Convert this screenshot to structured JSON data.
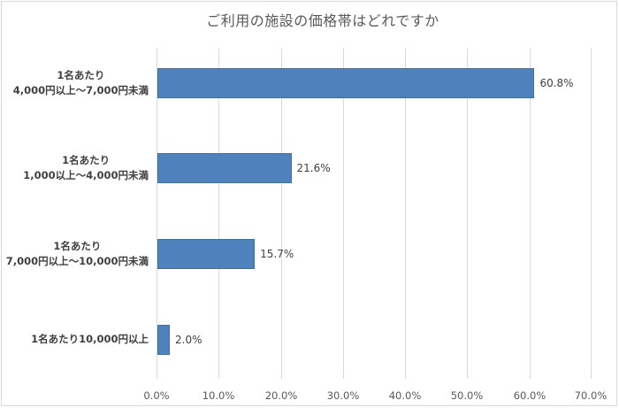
{
  "chart_data": {
    "type": "bar",
    "orientation": "horizontal",
    "title": "ご利用の施設の価格帯はどれですか",
    "xlabel": "",
    "ylabel": "",
    "xlim": [
      0,
      70
    ],
    "grid": true,
    "legend": null,
    "categories": [
      "1名あたり 4,000円以上～7,000円未満",
      "1名あたり 1,000以上～4,000円未満",
      "1名あたり 7,000円以上～10,000円未満",
      "1名あたり10,000円以上"
    ],
    "values": [
      60.8,
      21.6,
      15.7,
      2.0
    ],
    "data_labels": [
      "60.8%",
      "21.6%",
      "15.7%",
      "2.0%"
    ],
    "x_ticks": [
      "0.0%",
      "10.0%",
      "20.0%",
      "30.0%",
      "40.0%",
      "50.0%",
      "60.0%",
      "70.0%"
    ],
    "bar_color": "#4f81bd"
  },
  "title": "ご利用の施設の価格帯はどれですか",
  "categories": [
    {
      "line1": "1名あたり",
      "line2": "4,000円以上～7,000円未満",
      "value": 60.8,
      "label": "60.8%"
    },
    {
      "line1": "1名あたり",
      "line2": "1,000以上～4,000円未満",
      "value": 21.6,
      "label": "21.6%"
    },
    {
      "line1": "1名あたり",
      "line2": "7,000円以上～10,000円未満",
      "value": 15.7,
      "label": "15.7%"
    },
    {
      "line1": "1名あたり10,000円以上",
      "line2": "",
      "value": 2.0,
      "label": "2.0%"
    }
  ],
  "ticks": [
    "0.0%",
    "10.0%",
    "20.0%",
    "30.0%",
    "40.0%",
    "50.0%",
    "60.0%",
    "70.0%"
  ]
}
